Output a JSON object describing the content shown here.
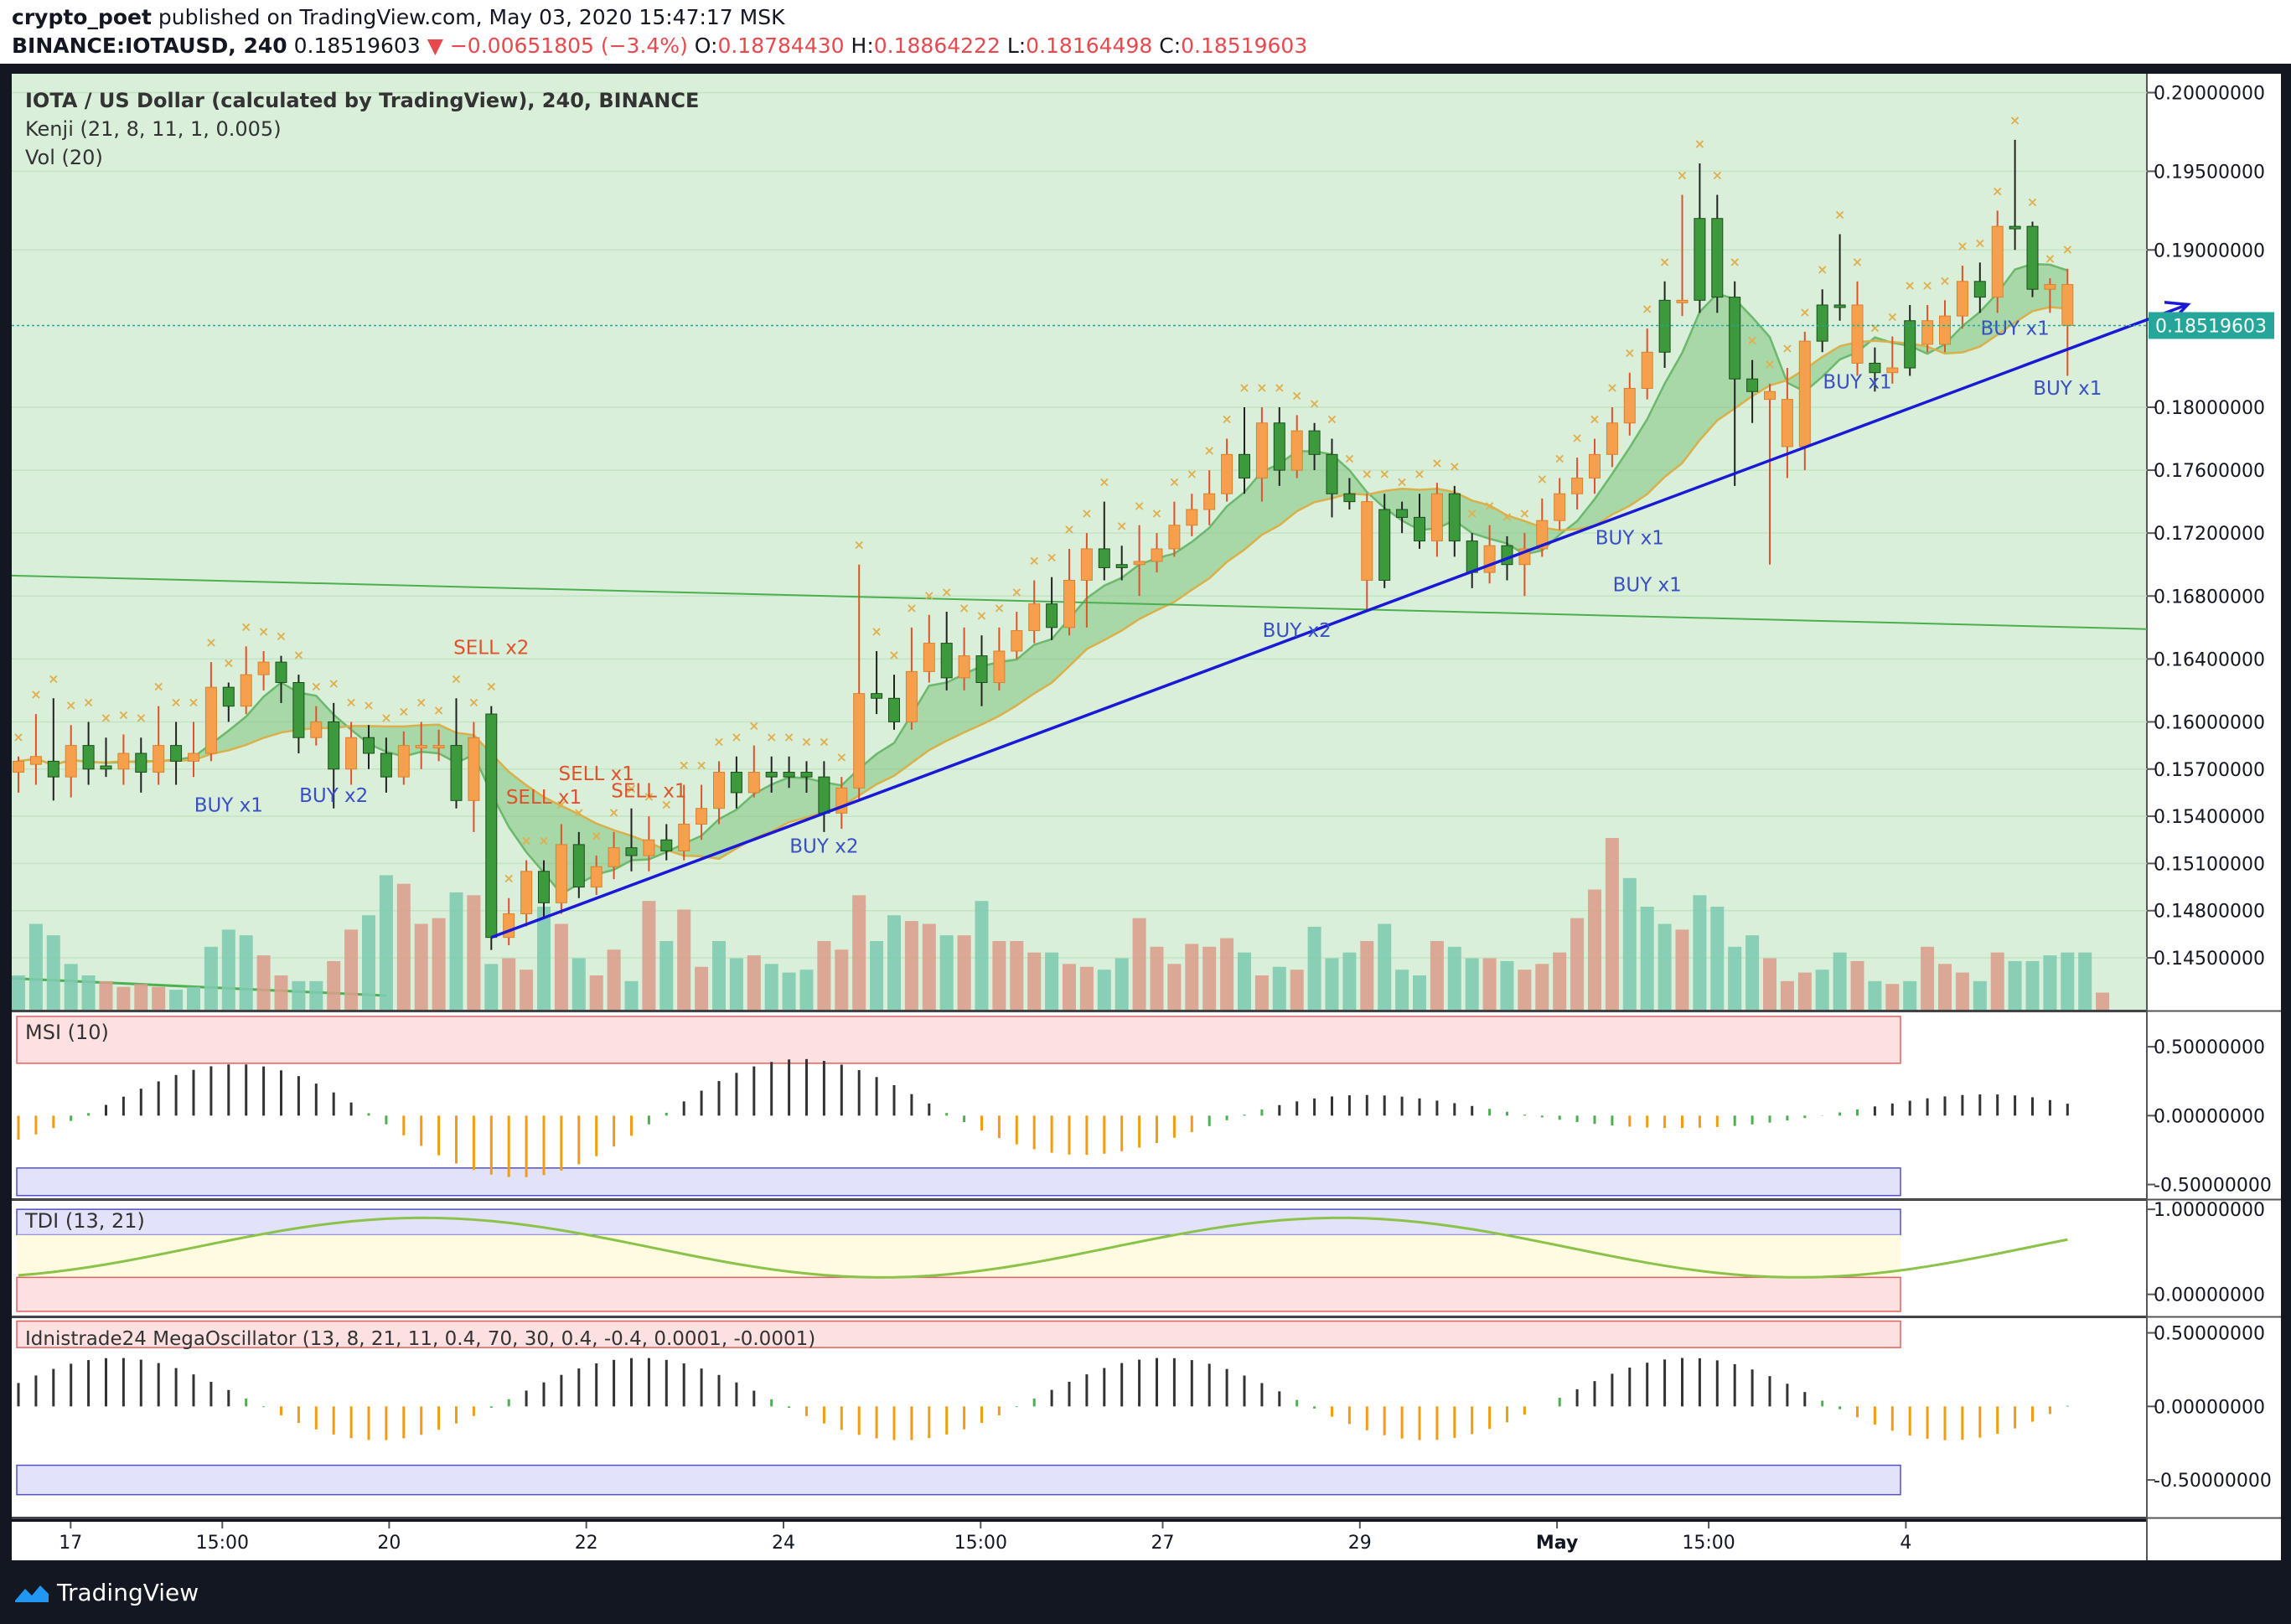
{
  "header": {
    "author": "crypto_poet",
    "published": "published on TradingView.com, May 03, 2020 15:47:17 MSK",
    "symbol": "BINANCE:IOTAUSD, 240",
    "last": "0.18519603",
    "change": "▼ −0.00651805 (−3.4%)",
    "o_label": "O:",
    "o": "0.18784430",
    "h_label": "H:",
    "h": "0.18864222",
    "l_label": "L:",
    "l": "0.18164498",
    "c_label": "C:",
    "c": "0.18519603"
  },
  "legend": {
    "title": "IOTA / US Dollar (calculated by TradingView), 240, BINANCE",
    "kenji": "Kenji (21, 8, 11, 1, 0.005)",
    "vol": "Vol (20)",
    "msi": "MSI (10)",
    "tdi": "TDI (13, 21)",
    "mega": "Idnistrade24 MegaOscillator (13, 8, 21, 11, 0.4, 70, 30, 0.4, -0.4, 0.0001, -0.0001)"
  },
  "price_label": "0.18519603",
  "footer": {
    "brand": "TradingView"
  },
  "colors": {
    "bull": "#3c9a3c",
    "bear": "#f6a04d",
    "panel_bg": "#d9efd9",
    "trend": "#1a1ad6",
    "buy": "#3a4fc4",
    "sell": "#e0522a",
    "vol_up": "#7fcbb0",
    "vol_down": "#d9a08c"
  },
  "chart_data": {
    "type": "candlestick",
    "title": "IOTA / US Dollar (calculated by TradingView), 240, BINANCE",
    "x_ticks": [
      "17",
      "15:00",
      "20",
      "22",
      "24",
      "15:00",
      "27",
      "29",
      "May",
      "15:00",
      "4"
    ],
    "y_ticks": [
      "0.20000000",
      "0.19500000",
      "0.19000000",
      "0.18000000",
      "0.17600000",
      "0.17200000",
      "0.16800000",
      "0.16400000",
      "0.16000000",
      "0.15700000",
      "0.15400000",
      "0.15100000",
      "0.14800000",
      "0.14500000"
    ],
    "ylim": [
      0.1417,
      0.2012
    ],
    "current_price": 0.18519603,
    "candles": [
      [
        0.1568,
        0.1575,
        0.1555,
        0.1578
      ],
      [
        0.1573,
        0.1578,
        0.156,
        0.1605
      ],
      [
        0.1575,
        0.1565,
        0.155,
        0.1615
      ],
      [
        0.1565,
        0.1585,
        0.1552,
        0.1598
      ],
      [
        0.1585,
        0.157,
        0.156,
        0.16
      ],
      [
        0.157,
        0.1572,
        0.1565,
        0.159
      ],
      [
        0.157,
        0.158,
        0.156,
        0.1592
      ],
      [
        0.158,
        0.1568,
        0.1555,
        0.159
      ],
      [
        0.1568,
        0.1585,
        0.156,
        0.161
      ],
      [
        0.1585,
        0.1575,
        0.156,
        0.16
      ],
      [
        0.1575,
        0.158,
        0.1565,
        0.16
      ],
      [
        0.158,
        0.1622,
        0.1575,
        0.1638
      ],
      [
        0.1622,
        0.161,
        0.16,
        0.1625
      ],
      [
        0.161,
        0.163,
        0.1605,
        0.1648
      ],
      [
        0.163,
        0.1638,
        0.162,
        0.1645
      ],
      [
        0.1638,
        0.1625,
        0.1612,
        0.1642
      ],
      [
        0.1625,
        0.159,
        0.158,
        0.163
      ],
      [
        0.159,
        0.16,
        0.1585,
        0.161
      ],
      [
        0.16,
        0.157,
        0.1545,
        0.1612
      ],
      [
        0.157,
        0.159,
        0.156,
        0.16
      ],
      [
        0.159,
        0.158,
        0.157,
        0.1598
      ],
      [
        0.158,
        0.1565,
        0.1555,
        0.159
      ],
      [
        0.1565,
        0.1585,
        0.156,
        0.1594
      ],
      [
        0.1585,
        0.1585,
        0.157,
        0.16
      ],
      [
        0.1585,
        0.1585,
        0.1575,
        0.1595
      ],
      [
        0.1585,
        0.155,
        0.1545,
        0.1615
      ],
      [
        0.155,
        0.159,
        0.153,
        0.16
      ],
      [
        0.1605,
        0.1463,
        0.1455,
        0.161
      ],
      [
        0.1463,
        0.1478,
        0.1458,
        0.1488
      ],
      [
        0.1478,
        0.1505,
        0.147,
        0.1512
      ],
      [
        0.1505,
        0.1485,
        0.1475,
        0.1512
      ],
      [
        0.1485,
        0.1522,
        0.1478,
        0.1535
      ],
      [
        0.1522,
        0.1495,
        0.1488,
        0.153
      ],
      [
        0.1495,
        0.1508,
        0.149,
        0.1515
      ],
      [
        0.1508,
        0.152,
        0.15,
        0.153
      ],
      [
        0.152,
        0.1515,
        0.1505,
        0.1545
      ],
      [
        0.1515,
        0.1525,
        0.1505,
        0.154
      ],
      [
        0.1525,
        0.1518,
        0.1512,
        0.1535
      ],
      [
        0.1518,
        0.1535,
        0.1512,
        0.156
      ],
      [
        0.1535,
        0.1545,
        0.1525,
        0.156
      ],
      [
        0.1545,
        0.1568,
        0.1535,
        0.1575
      ],
      [
        0.1568,
        0.1555,
        0.1545,
        0.1578
      ],
      [
        0.1555,
        0.1568,
        0.1552,
        0.1585
      ],
      [
        0.1568,
        0.1565,
        0.1555,
        0.1578
      ],
      [
        0.1565,
        0.1568,
        0.1558,
        0.1578
      ],
      [
        0.1568,
        0.1565,
        0.1555,
        0.1575
      ],
      [
        0.1565,
        0.1542,
        0.153,
        0.1575
      ],
      [
        0.1542,
        0.1558,
        0.1532,
        0.1565
      ],
      [
        0.1558,
        0.1618,
        0.155,
        0.17
      ],
      [
        0.1618,
        0.1615,
        0.1605,
        0.1645
      ],
      [
        0.1615,
        0.16,
        0.1595,
        0.163
      ],
      [
        0.16,
        0.1632,
        0.1595,
        0.166
      ],
      [
        0.1632,
        0.165,
        0.1625,
        0.1668
      ],
      [
        0.165,
        0.1628,
        0.162,
        0.167
      ],
      [
        0.1628,
        0.1642,
        0.162,
        0.166
      ],
      [
        0.1642,
        0.1625,
        0.161,
        0.1655
      ],
      [
        0.1625,
        0.1645,
        0.162,
        0.166
      ],
      [
        0.1645,
        0.1658,
        0.164,
        0.167
      ],
      [
        0.1658,
        0.1675,
        0.165,
        0.169
      ],
      [
        0.1675,
        0.166,
        0.1652,
        0.1692
      ],
      [
        0.166,
        0.169,
        0.1655,
        0.171
      ],
      [
        0.169,
        0.171,
        0.166,
        0.172
      ],
      [
        0.171,
        0.1698,
        0.169,
        0.174
      ],
      [
        0.1698,
        0.17,
        0.169,
        0.1712
      ],
      [
        0.17,
        0.1702,
        0.168,
        0.1725
      ],
      [
        0.1702,
        0.171,
        0.1695,
        0.172
      ],
      [
        0.171,
        0.1725,
        0.1705,
        0.174
      ],
      [
        0.1725,
        0.1735,
        0.1718,
        0.1745
      ],
      [
        0.1735,
        0.1745,
        0.1725,
        0.176
      ],
      [
        0.1745,
        0.177,
        0.174,
        0.178
      ],
      [
        0.177,
        0.1755,
        0.1745,
        0.18
      ],
      [
        0.1755,
        0.179,
        0.174,
        0.18
      ],
      [
        0.179,
        0.176,
        0.175,
        0.18
      ],
      [
        0.176,
        0.1785,
        0.1755,
        0.1795
      ],
      [
        0.1785,
        0.177,
        0.176,
        0.179
      ],
      [
        0.177,
        0.1745,
        0.173,
        0.178
      ],
      [
        0.1745,
        0.174,
        0.1735,
        0.1755
      ],
      [
        0.174,
        0.169,
        0.167,
        0.1745
      ],
      [
        0.169,
        0.1735,
        0.1685,
        0.1745
      ],
      [
        0.1735,
        0.173,
        0.172,
        0.174
      ],
      [
        0.173,
        0.1715,
        0.171,
        0.1745
      ],
      [
        0.1715,
        0.1745,
        0.1705,
        0.1752
      ],
      [
        0.1745,
        0.1715,
        0.1705,
        0.175
      ],
      [
        0.1715,
        0.1695,
        0.1685,
        0.172
      ],
      [
        0.1695,
        0.1712,
        0.1688,
        0.1725
      ],
      [
        0.1712,
        0.17,
        0.169,
        0.1718
      ],
      [
        0.17,
        0.171,
        0.168,
        0.172
      ],
      [
        0.171,
        0.1728,
        0.1705,
        0.1742
      ],
      [
        0.1728,
        0.1745,
        0.1722,
        0.1755
      ],
      [
        0.1745,
        0.1755,
        0.1735,
        0.1768
      ],
      [
        0.1755,
        0.177,
        0.1745,
        0.178
      ],
      [
        0.177,
        0.179,
        0.1762,
        0.18
      ],
      [
        0.179,
        0.1812,
        0.1782,
        0.1822
      ],
      [
        0.1812,
        0.1835,
        0.1805,
        0.185
      ],
      [
        0.1835,
        0.1868,
        0.1825,
        0.188
      ],
      [
        0.1868,
        0.1868,
        0.1858,
        0.1935
      ],
      [
        0.1868,
        0.192,
        0.186,
        0.1955
      ],
      [
        0.192,
        0.187,
        0.186,
        0.1935
      ],
      [
        0.187,
        0.1818,
        0.175,
        0.188
      ],
      [
        0.1818,
        0.181,
        0.179,
        0.183
      ],
      [
        0.181,
        0.1805,
        0.17,
        0.1815
      ],
      [
        0.1805,
        0.1775,
        0.1755,
        0.1825
      ],
      [
        0.1775,
        0.1842,
        0.176,
        0.1848
      ],
      [
        0.1842,
        0.1865,
        0.1835,
        0.1875
      ],
      [
        0.1865,
        0.1865,
        0.1855,
        0.191
      ],
      [
        0.1865,
        0.1828,
        0.182,
        0.188
      ],
      [
        0.1828,
        0.1822,
        0.181,
        0.1838
      ],
      [
        0.1822,
        0.1825,
        0.1815,
        0.1845
      ],
      [
        0.1825,
        0.1855,
        0.182,
        0.1865
      ],
      [
        0.1855,
        0.184,
        0.1835,
        0.1865
      ],
      [
        0.184,
        0.1858,
        0.1835,
        0.1868
      ],
      [
        0.1858,
        0.188,
        0.185,
        0.189
      ],
      [
        0.188,
        0.187,
        0.186,
        0.1892
      ],
      [
        0.187,
        0.1915,
        0.186,
        0.1925
      ],
      [
        0.1915,
        0.1915,
        0.19,
        0.197
      ],
      [
        0.1915,
        0.1875,
        0.187,
        0.1918
      ],
      [
        0.1875,
        0.1878,
        0.186,
        0.1882
      ],
      [
        0.1878,
        0.1852,
        0.182,
        0.1888
      ]
    ],
    "bull_flags": [
      0,
      0,
      1,
      0,
      1,
      1,
      0,
      1,
      0,
      1,
      0,
      0,
      1,
      0,
      0,
      1,
      1,
      0,
      1,
      0,
      1,
      1,
      0,
      0,
      0,
      1,
      0,
      1,
      0,
      0,
      1,
      0,
      1,
      0,
      0,
      1,
      0,
      1,
      0,
      0,
      0,
      1,
      0,
      1,
      1,
      1,
      1,
      0,
      0,
      1,
      1,
      0,
      0,
      1,
      0,
      1,
      0,
      0,
      0,
      1,
      0,
      0,
      1,
      1,
      0,
      0,
      0,
      0,
      0,
      0,
      1,
      0,
      1,
      0,
      1,
      1,
      1,
      0,
      1,
      1,
      1,
      0,
      1,
      1,
      0,
      1,
      0,
      0,
      0,
      0,
      0,
      0,
      0,
      0,
      1,
      0,
      1,
      1,
      1,
      1,
      0,
      0,
      0,
      1,
      1,
      0,
      1,
      0,
      1,
      0,
      0,
      0,
      1,
      0,
      1,
      1
    ],
    "volume": [
      12,
      30,
      26,
      16,
      12,
      10,
      8,
      9,
      8,
      7,
      8,
      22,
      28,
      26,
      19,
      12,
      10,
      10,
      17,
      28,
      33,
      47,
      44,
      30,
      32,
      41,
      40,
      16,
      18,
      14,
      36,
      30,
      18,
      12,
      21,
      10,
      38,
      24,
      35,
      15,
      24,
      18,
      19,
      16,
      13,
      14,
      24,
      21,
      40,
      24,
      33,
      31,
      30,
      26,
      26,
      38,
      24,
      24,
      20,
      20,
      16,
      15,
      14,
      18,
      32,
      22,
      16,
      23,
      22,
      25,
      20,
      12,
      15,
      14,
      29,
      18,
      20,
      24,
      30,
      14,
      12,
      24,
      22,
      18,
      18,
      17,
      14,
      16,
      20,
      32,
      42,
      60,
      46,
      36,
      30,
      28,
      40,
      36,
      22,
      26,
      18,
      10,
      13,
      14,
      20,
      17,
      10,
      9,
      10,
      22,
      16,
      13,
      10,
      20,
      17,
      17,
      19,
      20,
      20,
      6
    ],
    "volume_bull_flags": [
      1,
      1,
      1,
      1,
      1,
      0,
      0,
      0,
      0,
      1,
      1,
      1,
      1,
      1,
      0,
      0,
      1,
      1,
      0,
      0,
      1,
      1,
      0,
      0,
      0,
      1,
      0,
      1,
      0,
      0,
      1,
      0,
      1,
      0,
      0,
      1,
      0,
      1,
      0,
      0,
      1,
      1,
      0,
      1,
      1,
      1,
      0,
      0,
      0,
      1,
      1,
      0,
      0,
      1,
      0,
      1,
      0,
      0,
      0,
      1,
      0,
      0,
      1,
      1,
      0,
      0,
      0,
      0,
      0,
      0,
      1,
      0,
      1,
      0,
      1,
      1,
      1,
      0,
      1,
      1,
      1,
      0,
      1,
      1,
      0,
      1,
      0,
      0,
      0,
      0,
      0,
      0,
      1,
      1,
      1,
      0,
      1,
      1,
      1,
      1,
      0,
      0,
      0,
      1,
      1,
      0,
      1,
      0,
      1,
      0,
      0,
      0,
      1,
      0,
      1,
      1,
      1,
      1,
      1,
      0
    ],
    "signals": [
      {
        "text": "BUY x1",
        "type": "buy",
        "bar": 12,
        "price": 0.1543
      },
      {
        "text": "BUY x2",
        "type": "buy",
        "bar": 18,
        "price": 0.1549
      },
      {
        "text": "SELL x2",
        "type": "sell",
        "bar": 27,
        "price": 0.1643
      },
      {
        "text": "SELL x1",
        "type": "sell",
        "bar": 30,
        "price": 0.1548
      },
      {
        "text": "SELL x1",
        "type": "sell",
        "bar": 33,
        "price": 0.1563
      },
      {
        "text": "SELL x1",
        "type": "sell",
        "bar": 36,
        "price": 0.1552
      },
      {
        "text": "BUY x2",
        "type": "buy",
        "bar": 46,
        "price": 0.1517
      },
      {
        "text": "BUY x2",
        "type": "buy",
        "bar": 73,
        "price": 0.1654
      },
      {
        "text": "BUY x1",
        "type": "buy",
        "bar": 92,
        "price": 0.1713
      },
      {
        "text": "BUY x1",
        "type": "buy",
        "bar": 93,
        "price": 0.1683
      },
      {
        "text": "BUY x1",
        "type": "buy",
        "bar": 105,
        "price": 0.1812
      },
      {
        "text": "BUY x1",
        "type": "buy",
        "bar": 114,
        "price": 0.1846
      },
      {
        "text": "BUY x1",
        "type": "buy",
        "bar": 117,
        "price": 0.1808
      }
    ],
    "trendline": {
      "from": [
        27,
        0.1463
      ],
      "to": [
        121,
        0.186
      ]
    },
    "msi": {
      "name": "MSI (10)",
      "y_ticks": [
        "0.50000000",
        "0.00000000",
        "-0.50000000"
      ],
      "ylim": [
        -0.6,
        0.75
      ]
    },
    "tdi": {
      "name": "TDI (13, 21)",
      "y_ticks": [
        "1.00000000",
        "0.00000000"
      ],
      "ylim": [
        -0.25,
        1.1
      ]
    },
    "mega": {
      "name": "Idnistrade24 MegaOscillator (13, 8, 21, 11, 0.4, 70, 30, 0.4, -0.4, 0.0001, -0.0001)",
      "y_ticks": [
        "0.50000000",
        "0.00000000",
        "-0.50000000"
      ],
      "ylim": [
        -0.75,
        0.6
      ]
    }
  }
}
